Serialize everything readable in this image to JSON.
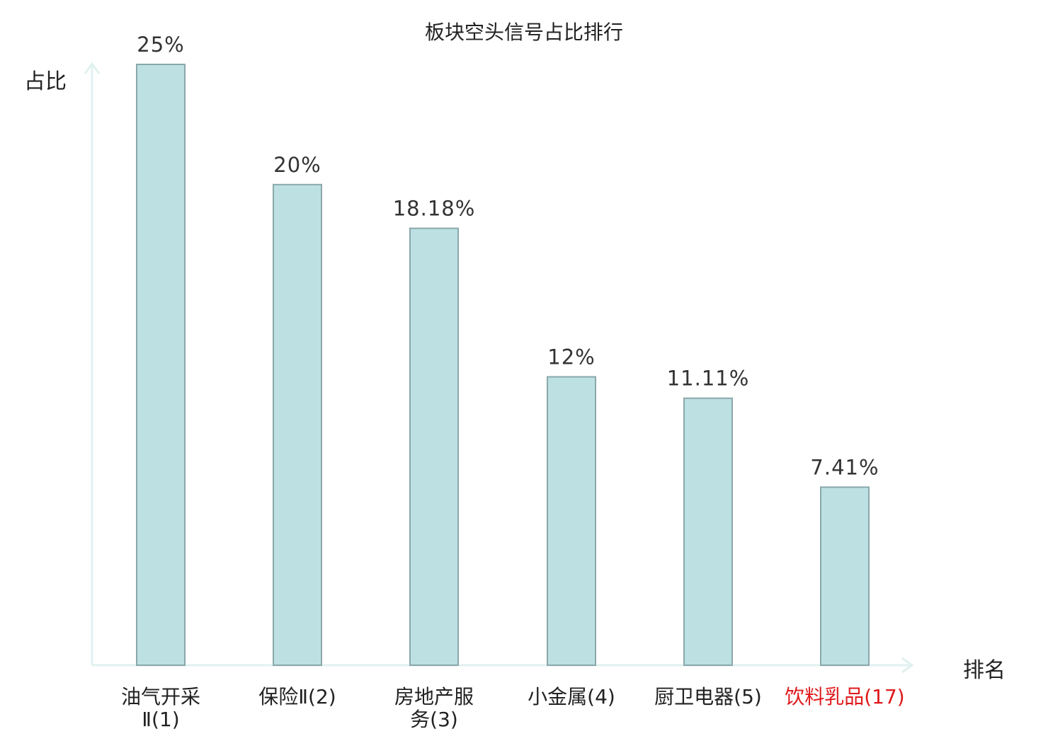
{
  "chart_data": {
    "type": "bar",
    "title": "板块空头信号占比排行",
    "ylabel": "占比",
    "xlabel": "排名",
    "categories": [
      {
        "name": "油气开采Ⅱ",
        "rank": "(1)",
        "line1": "油气开采",
        "line2": "Ⅱ(1)",
        "highlight": false
      },
      {
        "name": "保险Ⅱ",
        "rank": "(2)",
        "line1": "保险Ⅱ(2)",
        "line2": "",
        "highlight": false
      },
      {
        "name": "房地产服务",
        "rank": "(3)",
        "line1": "房地产服",
        "line2": "务(3)",
        "highlight": false
      },
      {
        "name": "小金属",
        "rank": "(4)",
        "line1": "小金属(4)",
        "line2": "",
        "highlight": false
      },
      {
        "name": "厨卫电器",
        "rank": "(5)",
        "line1": "厨卫电器(5)",
        "line2": "",
        "highlight": false
      },
      {
        "name": "饮料乳品",
        "rank": "(17)",
        "line1": "饮料乳品(17)",
        "line2": "",
        "highlight": true
      }
    ],
    "values": [
      25,
      20,
      18.18,
      12,
      11.11,
      7.41
    ],
    "value_labels": [
      "25%",
      "20%",
      "18.18%",
      "12%",
      "11.11%",
      "7.41%"
    ],
    "ylim": [
      0,
      25
    ],
    "grid": false,
    "colors": {
      "bar_fill": "#bde0e3",
      "bar_stroke": "#8aa8ab",
      "axis": "#e0f1ef",
      "text": "#222222",
      "highlight": "#e0191c"
    }
  }
}
